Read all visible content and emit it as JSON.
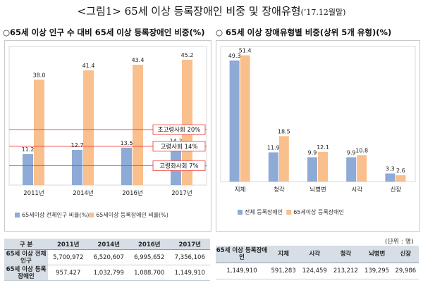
{
  "header": {
    "title": "<그림1> 65세 이상 등록장애인 비중 및 장애유형",
    "subtitle": "(’17.12월말)"
  },
  "left_panel": {
    "title": "○65세 이상 인구 수 대비 65세 이상 등록장애인 비중(%)"
  },
  "right_panel": {
    "title": "○ 65세 이상 장애유형별 비중(상위 5개 유형)(%)"
  },
  "colors": {
    "blue": "#8eaad7",
    "orange": "#f9bf8c",
    "ref_line": "#ee3333",
    "grid": "#d9d9d9"
  },
  "chart_data": [
    {
      "type": "bar",
      "categories": [
        "2011년",
        "2014년",
        "2016년",
        "2017년"
      ],
      "series": [
        {
          "name": "65세이상 전체인구 비율(%)",
          "values": [
            11.2,
            12.7,
            13.5,
            14.2
          ]
        },
        {
          "name": "65세이상 등록장애인 비율(%)",
          "values": [
            38.0,
            41.4,
            43.4,
            45.2
          ]
        }
      ],
      "reference_lines": [
        {
          "label": "초고령사회 20%",
          "value": 20
        },
        {
          "label": "고령사회 14%",
          "value": 14
        },
        {
          "label": "고령화사회 7%",
          "value": 7
        }
      ],
      "ylim": [
        0,
        50
      ],
      "legend": "bottom"
    },
    {
      "type": "bar",
      "categories": [
        "지체",
        "청각",
        "뇌병변",
        "시각",
        "신장"
      ],
      "series": [
        {
          "name": "전체 등록장애인",
          "values": [
            49.3,
            11.9,
            9.9,
            9.9,
            3.3
          ]
        },
        {
          "name": "65세이상 등록장애인",
          "values": [
            51.4,
            18.5,
            12.1,
            10.8,
            2.6
          ]
        }
      ],
      "ylim": [
        0,
        55
      ],
      "legend": "bottom"
    }
  ],
  "table_left": {
    "headers": [
      "구  분",
      "2011년",
      "2014년",
      "2016년",
      "2017년"
    ],
    "rows": [
      {
        "label": "65세 이상 전체인구",
        "values": [
          "5,700,972",
          "6,520,607",
          "6,995,652",
          "7,356,106"
        ]
      },
      {
        "label": "65세 이상 등록장애인",
        "values": [
          "957,427",
          "1,032,799",
          "1,088,700",
          "1,149,910"
        ]
      }
    ]
  },
  "table_right": {
    "unit": "(단위 : 명)",
    "headers": [
      "65세 이상 등록장애인",
      "지체",
      "시각",
      "청각",
      "뇌병변",
      "신장"
    ],
    "values": [
      "1,149,910",
      "591,283",
      "124,459",
      "213,212",
      "139,295",
      "29,986"
    ]
  }
}
